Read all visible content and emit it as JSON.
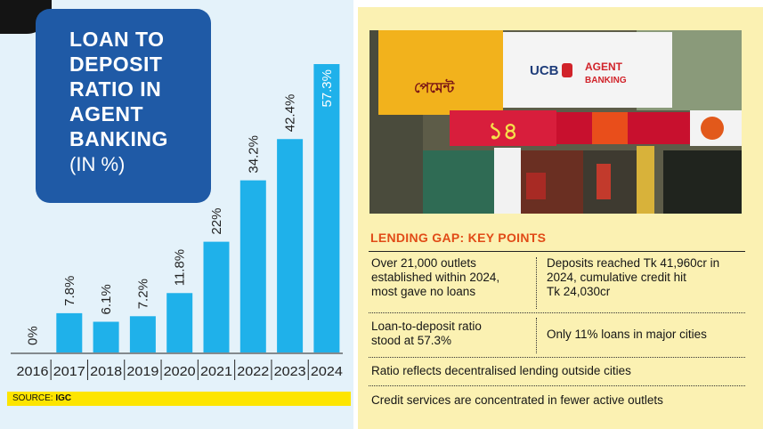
{
  "title": {
    "lines": [
      "LOAN TO",
      "DEPOSIT",
      "RATIO IN",
      "AGENT",
      "BANKING"
    ],
    "unit": "(IN %)"
  },
  "chart_data": {
    "type": "bar",
    "title": "LOAN TO DEPOSIT RATIO IN AGENT BANKING (IN %)",
    "categories": [
      "2016",
      "2017",
      "2018",
      "2019",
      "2020",
      "2021",
      "2022",
      "2023",
      "2024"
    ],
    "values": [
      0,
      7.8,
      6.1,
      7.2,
      11.8,
      22,
      34.2,
      42.4,
      57.3
    ],
    "data_labels": [
      "0%",
      "7.8%",
      "6.1%",
      "7.2%",
      "11.8%",
      "22%",
      "34.2%",
      "42.4%",
      "57.3%"
    ],
    "xlabel": "",
    "ylabel": "",
    "ylim": [
      0,
      60
    ],
    "grid": false,
    "bar_color": "#1fb1ea"
  },
  "source": {
    "label": "SOURCE:",
    "value": "IGC"
  },
  "photo": {
    "sign_ucb": "UCB",
    "sign_agent": "AGENT",
    "sign_banking": "BANKING",
    "sign_fourteen": "১৪",
    "sign_shop": "পেমেন্ট"
  },
  "key_points": {
    "title": "LENDING GAP: KEY POINTS",
    "row1_left": [
      "Over 21,000 outlets",
      "established within 2024,",
      "most gave no loans"
    ],
    "row1_right": [
      "Deposits reached Tk 41,960cr in",
      "2024, cumulative credit hit",
      "Tk 24,030cr"
    ],
    "row2_left": [
      "Loan-to-deposit ratio",
      "stood at 57.3%"
    ],
    "row2_right": "Only 11% loans in major cities",
    "row3": "Ratio reflects decentralised lending outside cities",
    "row4": "Credit services are concentrated in fewer active outlets"
  }
}
